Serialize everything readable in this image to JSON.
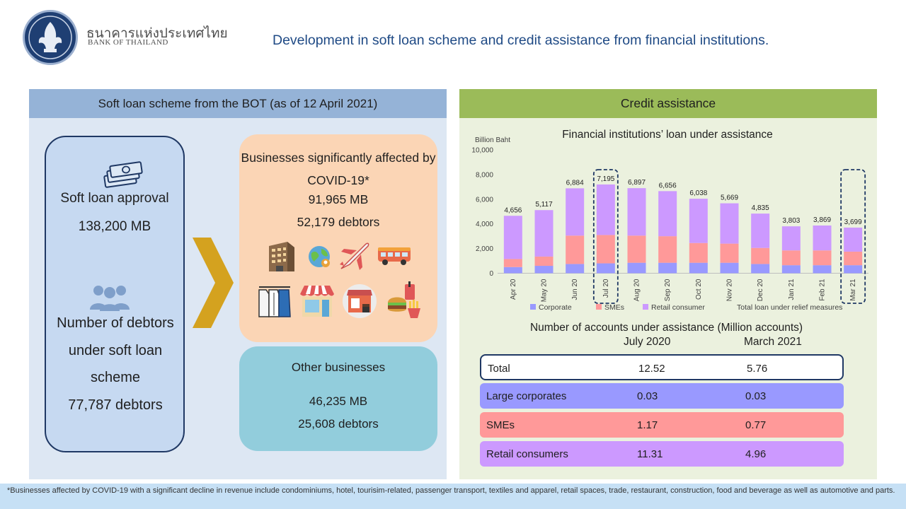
{
  "header": {
    "bank_name_thai": "ธนาคารแห่งประเทศไทย",
    "bank_name_en": "BANK OF THAILAND",
    "title": "Development in soft loan scheme and credit assistance from financial institutions."
  },
  "soft_loan": {
    "header": "Soft loan scheme from the BOT (as of 12 April 2021)",
    "approval_label": "Soft loan approval",
    "approval_value": "138,200 MB",
    "debtors_label": "Number of debtors under soft loan scheme",
    "debtors_value": "77,787 debtors",
    "affected": {
      "title": "Businesses significantly affected by COVID-19*",
      "amount": "91,965 MB",
      "debtors": "52,179 debtors",
      "icons": [
        "condominium-icon",
        "tourism-globe-icon",
        "airplane-icon",
        "bus-icon",
        "apparel-icon",
        "retail-shop-icon",
        "restaurant-icon",
        "food-icon"
      ]
    },
    "other": {
      "title": "Other businesses",
      "amount": "46,235 MB",
      "debtors": "25,608 debtors"
    }
  },
  "credit_assistance": {
    "header": "Credit assistance",
    "accounts_title": "Number of accounts under assistance (Million accounts)",
    "columns": [
      "July 2020",
      "March 2021"
    ],
    "rows": [
      {
        "label": "Total",
        "v1": "12.52",
        "v2": "5.76"
      },
      {
        "label": "Large corporates",
        "v1": "0.03",
        "v2": "0.03"
      },
      {
        "label": "SMEs",
        "v1": "1.17",
        "v2": "0.77"
      },
      {
        "label": "Retail consumers",
        "v1": "11.31",
        "v2": "4.96"
      }
    ],
    "colors": {
      "corporate": "#9999ff",
      "sme": "#ff9999",
      "retail": "#cc99ff",
      "highlight": "#1f3864"
    }
  },
  "chart_data": {
    "type": "bar",
    "stacked": true,
    "title": "Financial institutions’ loan under assistance",
    "ylabel": "Billion Baht",
    "ylim": [
      0,
      10000
    ],
    "yticks": [
      "0",
      "2,000",
      "4,000",
      "6,000",
      "8,000",
      "10,000"
    ],
    "categories": [
      "Apr 20",
      "May 20",
      "Jun 20",
      "Jul 20",
      "Aug 20",
      "Sep 20",
      "Oct 20",
      "Nov 20",
      "Dec 20",
      "Jan 21",
      "Feb 21",
      "Mar 21"
    ],
    "series": [
      {
        "name": "Corporate",
        "color": "#9999ff",
        "values": [
          500,
          600,
          750,
          800,
          850,
          850,
          850,
          850,
          750,
          650,
          650,
          650
        ]
      },
      {
        "name": "SMEs",
        "color": "#ff9999",
        "values": [
          650,
          750,
          2300,
          2300,
          2200,
          2150,
          1600,
          1550,
          1300,
          1200,
          1200,
          1100
        ]
      },
      {
        "name": "Retail consumer",
        "color": "#cc99ff",
        "values": [
          3506,
          3767,
          3834,
          4095,
          3847,
          3656,
          3588,
          3269,
          2785,
          1953,
          2019,
          1949
        ]
      }
    ],
    "totals": [
      4656,
      5117,
      6884,
      7195,
      6897,
      6656,
      6038,
      5669,
      4835,
      3803,
      3869,
      3699
    ],
    "total_labels": [
      "4,656",
      "5,117",
      "6,884",
      "7,195",
      "6,897",
      "6,656",
      "6,038",
      "5,669",
      "4,835",
      "3,803",
      "3,869",
      "3,699"
    ],
    "total_series_name": "Total loan under relief measures",
    "highlighted": [
      "Jul 20",
      "Mar 21"
    ],
    "legend_position": "bottom"
  },
  "footnote": "*Businesses affected by COVID-19 with a significant decline in revenue include condominiums, hotel, tourisim-related, passenger transport, textiles and apparel, retail spaces, trade, restaurant, construction, food and beverage as well as automotive and parts."
}
